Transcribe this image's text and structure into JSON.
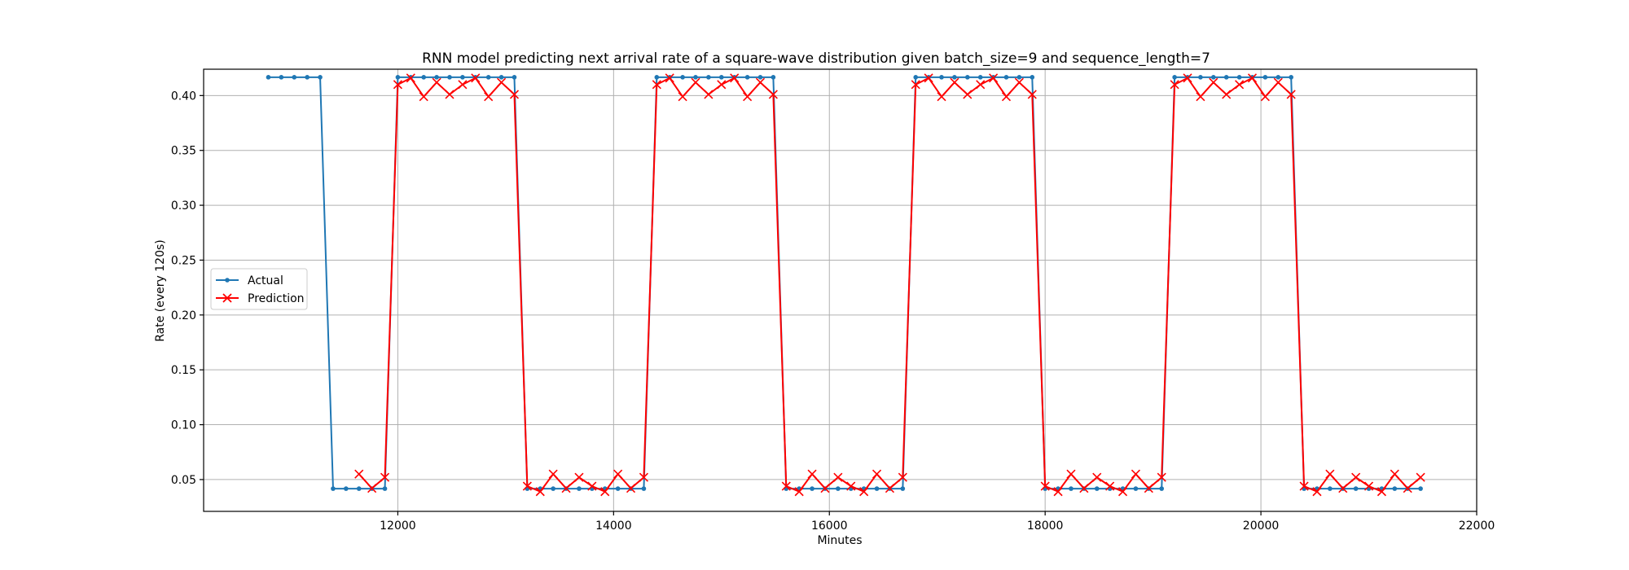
{
  "chart_data": {
    "type": "line",
    "title": "RNN model predicting next arrival rate of a square-wave distribution given batch_size=9 and sequence_length=7",
    "xlabel": "Minutes",
    "ylabel": "Rate (every 120s)",
    "xlim": [
      10200,
      22000
    ],
    "ylim": [
      0.021,
      0.424
    ],
    "xticks": [
      12000,
      14000,
      16000,
      18000,
      20000,
      22000
    ],
    "yticks": [
      0.05,
      0.1,
      0.15,
      0.2,
      0.25,
      0.3,
      0.35,
      0.4
    ],
    "xtick_labels": [
      "12000",
      "14000",
      "16000",
      "18000",
      "20000",
      "22000"
    ],
    "ytick_labels": [
      "0.05",
      "0.10",
      "0.15",
      "0.20",
      "0.25",
      "0.30",
      "0.35",
      "0.40"
    ],
    "grid": true,
    "legend_position": "center-left",
    "period": 1200,
    "high": 0.4167,
    "low": 0.0417,
    "series": [
      {
        "name": "Actual",
        "color": "#1f77b4",
        "marker": "dot",
        "x_start": 10800,
        "x_end": 21480,
        "x_step": 120,
        "high_until": 11280
      },
      {
        "name": "Prediction",
        "color": "#ff0000",
        "marker": "x",
        "x_start": 11640,
        "x_end": 21480,
        "x_step": 120,
        "high_pattern": [
          0.41,
          0.416,
          0.399,
          0.412,
          0.401
        ],
        "low_pattern": [
          0.044,
          0.039,
          0.055,
          0.042,
          0.052
        ]
      }
    ]
  }
}
